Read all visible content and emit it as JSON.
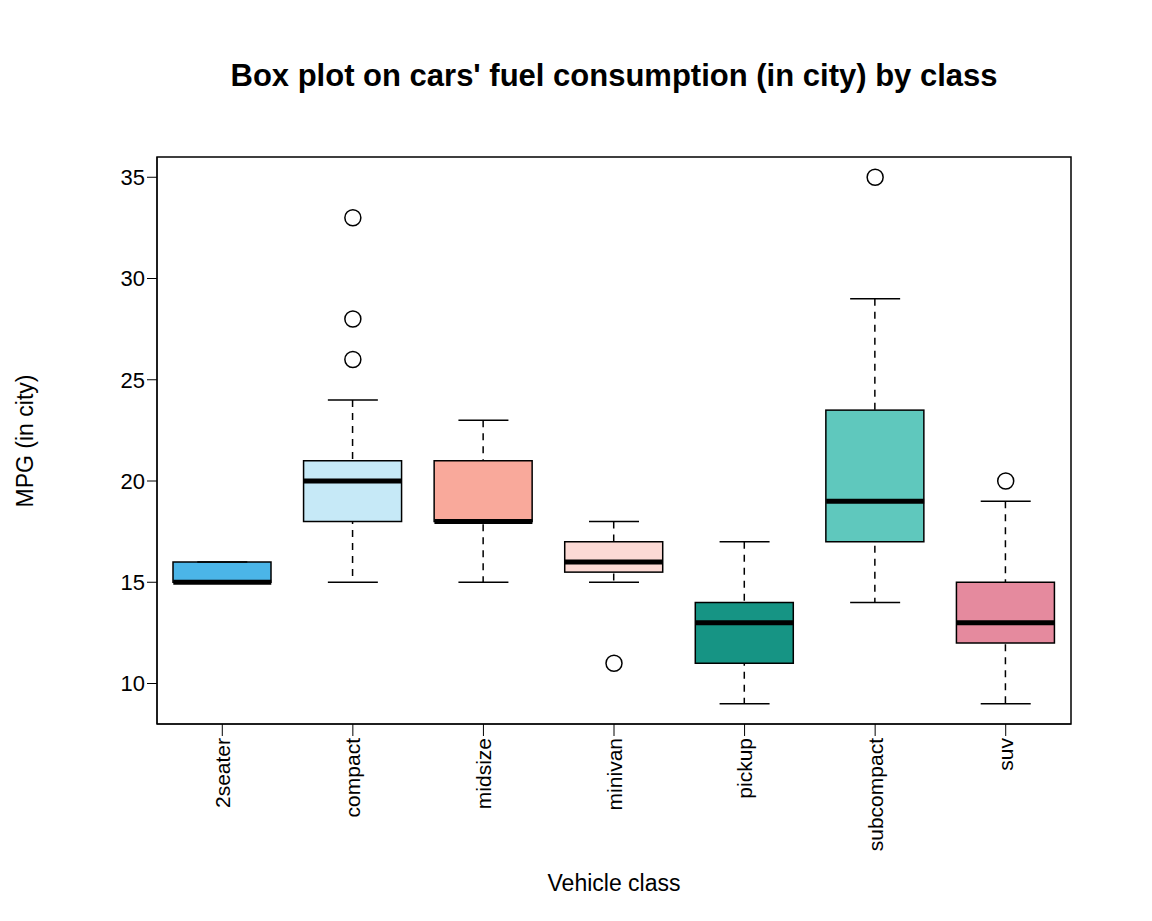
{
  "chart_data": {
    "type": "box",
    "title": "Box plot on cars' fuel consumption (in city) by class",
    "x_label": "Vehicle class",
    "y_label": "MPG (in city)",
    "categories": [
      "2seater",
      "compact",
      "midsize",
      "minivan",
      "pickup",
      "subcompact",
      "suv"
    ],
    "whisker_low": [
      15,
      15,
      15,
      15,
      9,
      14,
      9
    ],
    "q1": [
      15,
      18,
      18,
      15.5,
      11,
      17,
      12
    ],
    "median": [
      15,
      20,
      18,
      16,
      13,
      19,
      13
    ],
    "q3": [
      16,
      21,
      21,
      17,
      14,
      23.5,
      15
    ],
    "whisker_high": [
      16,
      24,
      23,
      18,
      17,
      29,
      19
    ],
    "outliers": [
      [],
      [
        26,
        28,
        33
      ],
      [],
      [
        11
      ],
      [],
      [
        35
      ],
      [
        20
      ]
    ],
    "colors": [
      "#4bb5e8",
      "#c6e9f7",
      "#f9a99b",
      "#fcdad5",
      "#169484",
      "#5fc8bd",
      "#e58a9e"
    ],
    "ylim": [
      8,
      36
    ],
    "yticks": [
      10,
      15,
      20,
      25,
      30,
      35
    ],
    "grid": false
  }
}
